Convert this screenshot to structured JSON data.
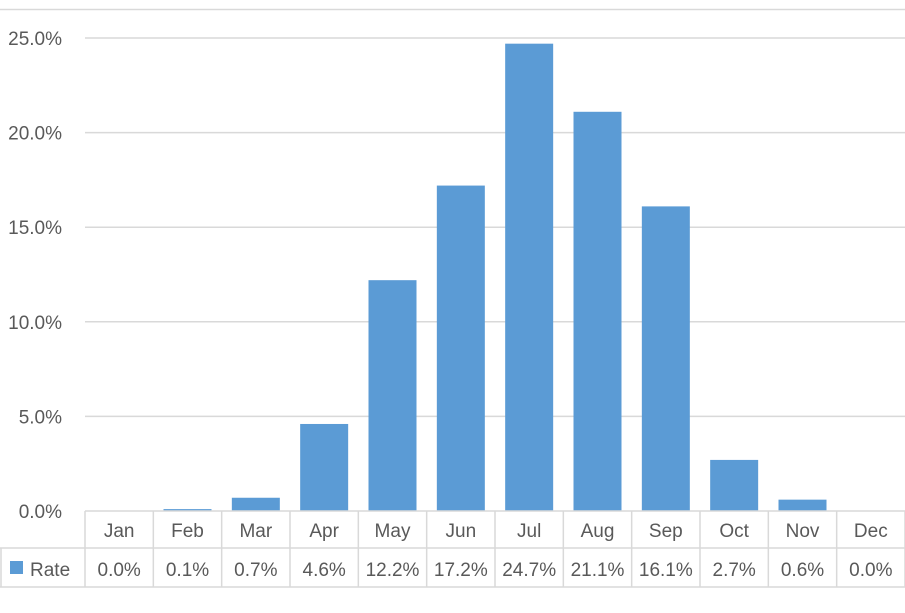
{
  "chart_data": {
    "type": "bar",
    "title": "",
    "xlabel": "",
    "ylabel": "",
    "categories": [
      "Jan",
      "Feb",
      "Mar",
      "Apr",
      "May",
      "Jun",
      "Jul",
      "Aug",
      "Sep",
      "Oct",
      "Nov",
      "Dec"
    ],
    "series": [
      {
        "name": "Rate",
        "values": [
          0.0,
          0.1,
          0.7,
          4.6,
          12.2,
          17.2,
          24.7,
          21.1,
          16.1,
          2.7,
          0.6,
          0.0
        ],
        "labels": [
          "0.0%",
          "0.1%",
          "0.7%",
          "4.6%",
          "12.2%",
          "17.2%",
          "24.7%",
          "21.1%",
          "16.1%",
          "2.7%",
          "0.6%",
          "0.0%"
        ],
        "color": "#5B9BD5"
      }
    ],
    "ylim": [
      0,
      25
    ],
    "yticks": [
      "0.0%",
      "5.0%",
      "10.0%",
      "15.0%",
      "20.0%",
      "25.0%"
    ],
    "grid": true,
    "data_table": true,
    "legend": "data-table-left",
    "colors": {
      "bar": "#5B9BD5",
      "grid": "#D9D9D9",
      "text": "#595959"
    }
  }
}
